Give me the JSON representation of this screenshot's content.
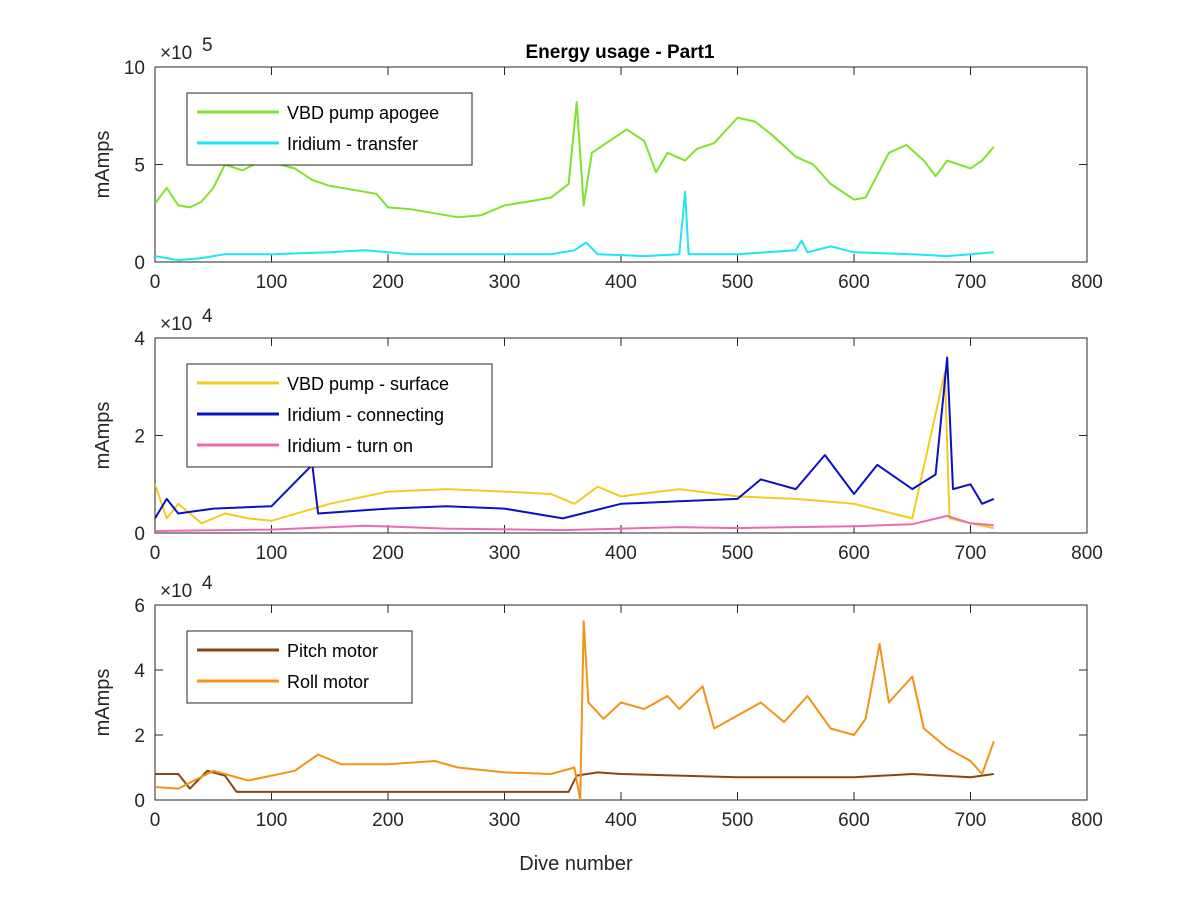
{
  "chart_data": [
    {
      "type": "line",
      "title": "Energy usage - Part1",
      "xlabel": "",
      "ylabel": "mAmps",
      "xlim": [
        0,
        800
      ],
      "ylim": [
        0,
        1000000
      ],
      "y_exponent_label": "×10",
      "y_exponent_power": "5",
      "xticks": [
        "0",
        "100",
        "200",
        "300",
        "400",
        "500",
        "600",
        "700",
        "800"
      ],
      "yticks": [
        "0",
        "5",
        "10"
      ],
      "legend_position": "top-left",
      "series": [
        {
          "name": "VBD pump apogee",
          "color": "#7fe32b",
          "points": [
            [
              0,
              300000
            ],
            [
              10,
              380000
            ],
            [
              20,
              290000
            ],
            [
              30,
              280000
            ],
            [
              40,
              310000
            ],
            [
              50,
              380000
            ],
            [
              60,
              500000
            ],
            [
              75,
              470000
            ],
            [
              85,
              500000
            ],
            [
              100,
              510000
            ],
            [
              120,
              480000
            ],
            [
              135,
              420000
            ],
            [
              150,
              390000
            ],
            [
              170,
              370000
            ],
            [
              190,
              350000
            ],
            [
              200,
              280000
            ],
            [
              220,
              270000
            ],
            [
              240,
              250000
            ],
            [
              260,
              230000
            ],
            [
              280,
              240000
            ],
            [
              300,
              290000
            ],
            [
              320,
              310000
            ],
            [
              340,
              330000
            ],
            [
              355,
              400000
            ],
            [
              362,
              820000
            ],
            [
              368,
              290000
            ],
            [
              375,
              560000
            ],
            [
              390,
              620000
            ],
            [
              405,
              680000
            ],
            [
              420,
              620000
            ],
            [
              430,
              460000
            ],
            [
              440,
              560000
            ],
            [
              455,
              520000
            ],
            [
              465,
              580000
            ],
            [
              480,
              610000
            ],
            [
              500,
              740000
            ],
            [
              515,
              720000
            ],
            [
              530,
              650000
            ],
            [
              550,
              540000
            ],
            [
              565,
              500000
            ],
            [
              580,
              400000
            ],
            [
              600,
              320000
            ],
            [
              610,
              330000
            ],
            [
              630,
              560000
            ],
            [
              645,
              600000
            ],
            [
              660,
              520000
            ],
            [
              670,
              440000
            ],
            [
              680,
              520000
            ],
            [
              700,
              480000
            ],
            [
              710,
              520000
            ],
            [
              720,
              590000
            ]
          ]
        },
        {
          "name": "Iridium - transfer",
          "color": "#1de5f2",
          "points": [
            [
              0,
              30000
            ],
            [
              20,
              10000
            ],
            [
              40,
              20000
            ],
            [
              60,
              40000
            ],
            [
              100,
              40000
            ],
            [
              150,
              50000
            ],
            [
              180,
              60000
            ],
            [
              220,
              40000
            ],
            [
              280,
              40000
            ],
            [
              340,
              40000
            ],
            [
              360,
              60000
            ],
            [
              370,
              100000
            ],
            [
              380,
              40000
            ],
            [
              420,
              30000
            ],
            [
              450,
              40000
            ],
            [
              455,
              360000
            ],
            [
              458,
              40000
            ],
            [
              500,
              40000
            ],
            [
              550,
              60000
            ],
            [
              555,
              110000
            ],
            [
              560,
              50000
            ],
            [
              580,
              80000
            ],
            [
              600,
              50000
            ],
            [
              650,
              40000
            ],
            [
              680,
              30000
            ],
            [
              700,
              40000
            ],
            [
              720,
              50000
            ]
          ]
        }
      ]
    },
    {
      "type": "line",
      "title": "",
      "xlabel": "",
      "ylabel": "mAmps",
      "xlim": [
        0,
        800
      ],
      "ylim": [
        0,
        40000
      ],
      "y_exponent_label": "×10",
      "y_exponent_power": "4",
      "xticks": [
        "0",
        "100",
        "200",
        "300",
        "400",
        "500",
        "600",
        "700",
        "800"
      ],
      "yticks": [
        "0",
        "2",
        "4"
      ],
      "legend_position": "top-left",
      "series": [
        {
          "name": "VBD pump - surface",
          "color": "#f2cc1d",
          "points": [
            [
              0,
              10000
            ],
            [
              10,
              3000
            ],
            [
              20,
              6000
            ],
            [
              40,
              2000
            ],
            [
              60,
              4000
            ],
            [
              80,
              3000
            ],
            [
              100,
              2500
            ],
            [
              150,
              6000
            ],
            [
              200,
              8500
            ],
            [
              250,
              9000
            ],
            [
              300,
              8500
            ],
            [
              340,
              8000
            ],
            [
              360,
              6000
            ],
            [
              380,
              9500
            ],
            [
              400,
              7500
            ],
            [
              450,
              9000
            ],
            [
              500,
              7500
            ],
            [
              550,
              7000
            ],
            [
              600,
              6000
            ],
            [
              650,
              3000
            ],
            [
              678,
              33000
            ],
            [
              682,
              3000
            ],
            [
              700,
              2000
            ],
            [
              720,
              1000
            ]
          ]
        },
        {
          "name": "Iridium - connecting",
          "color": "#0b10c9",
          "points": [
            [
              0,
              3000
            ],
            [
              10,
              7000
            ],
            [
              20,
              4000
            ],
            [
              50,
              5000
            ],
            [
              100,
              5500
            ],
            [
              135,
              14000
            ],
            [
              140,
              4000
            ],
            [
              200,
              5000
            ],
            [
              250,
              5500
            ],
            [
              300,
              5000
            ],
            [
              350,
              3000
            ],
            [
              400,
              6000
            ],
            [
              450,
              6500
            ],
            [
              500,
              7000
            ],
            [
              520,
              11000
            ],
            [
              550,
              9000
            ],
            [
              575,
              16000
            ],
            [
              600,
              8000
            ],
            [
              620,
              14000
            ],
            [
              650,
              9000
            ],
            [
              670,
              12000
            ],
            [
              680,
              36000
            ],
            [
              685,
              9000
            ],
            [
              700,
              10000
            ],
            [
              710,
              6000
            ],
            [
              720,
              7000
            ]
          ]
        },
        {
          "name": "Iridium - turn on",
          "color": "#ea6bb2",
          "points": [
            [
              0,
              400
            ],
            [
              100,
              700
            ],
            [
              180,
              1500
            ],
            [
              250,
              900
            ],
            [
              350,
              600
            ],
            [
              400,
              900
            ],
            [
              450,
              1200
            ],
            [
              500,
              1000
            ],
            [
              550,
              1200
            ],
            [
              600,
              1400
            ],
            [
              650,
              1800
            ],
            [
              680,
              3500
            ],
            [
              700,
              2000
            ],
            [
              720,
              1600
            ]
          ]
        }
      ]
    },
    {
      "type": "line",
      "title": "",
      "xlabel": "Dive number",
      "ylabel": "mAmps",
      "xlim": [
        0,
        800
      ],
      "ylim": [
        0,
        60000
      ],
      "y_exponent_label": "×10",
      "y_exponent_power": "4",
      "xticks": [
        "0",
        "100",
        "200",
        "300",
        "400",
        "500",
        "600",
        "700",
        "800"
      ],
      "yticks": [
        "0",
        "2",
        "4",
        "6"
      ],
      "legend_position": "top-left",
      "series": [
        {
          "name": "Pitch motor",
          "color": "#8b4513",
          "points": [
            [
              0,
              8000
            ],
            [
              20,
              8000
            ],
            [
              30,
              3500
            ],
            [
              45,
              9000
            ],
            [
              60,
              7500
            ],
            [
              70,
              2500
            ],
            [
              100,
              2500
            ],
            [
              200,
              2500
            ],
            [
              300,
              2500
            ],
            [
              355,
              2500
            ],
            [
              362,
              7500
            ],
            [
              380,
              8500
            ],
            [
              400,
              8000
            ],
            [
              450,
              7500
            ],
            [
              500,
              7000
            ],
            [
              550,
              7000
            ],
            [
              600,
              7000
            ],
            [
              650,
              8000
            ],
            [
              700,
              7000
            ],
            [
              720,
              8000
            ]
          ]
        },
        {
          "name": "Roll motor",
          "color": "#f29315",
          "points": [
            [
              0,
              4000
            ],
            [
              20,
              3500
            ],
            [
              50,
              9000
            ],
            [
              80,
              6000
            ],
            [
              120,
              9000
            ],
            [
              140,
              14000
            ],
            [
              160,
              11000
            ],
            [
              200,
              11000
            ],
            [
              240,
              12000
            ],
            [
              260,
              10000
            ],
            [
              300,
              8500
            ],
            [
              340,
              8000
            ],
            [
              360,
              10000
            ],
            [
              365,
              0
            ],
            [
              368,
              55000
            ],
            [
              372,
              30000
            ],
            [
              385,
              25000
            ],
            [
              400,
              30000
            ],
            [
              420,
              28000
            ],
            [
              440,
              32000
            ],
            [
              450,
              28000
            ],
            [
              470,
              35000
            ],
            [
              480,
              22000
            ],
            [
              500,
              26000
            ],
            [
              520,
              30000
            ],
            [
              540,
              24000
            ],
            [
              560,
              32000
            ],
            [
              580,
              22000
            ],
            [
              600,
              20000
            ],
            [
              610,
              25000
            ],
            [
              622,
              48000
            ],
            [
              630,
              30000
            ],
            [
              650,
              38000
            ],
            [
              660,
              22000
            ],
            [
              680,
              16000
            ],
            [
              700,
              12000
            ],
            [
              710,
              8000
            ],
            [
              720,
              18000
            ]
          ]
        }
      ]
    }
  ]
}
